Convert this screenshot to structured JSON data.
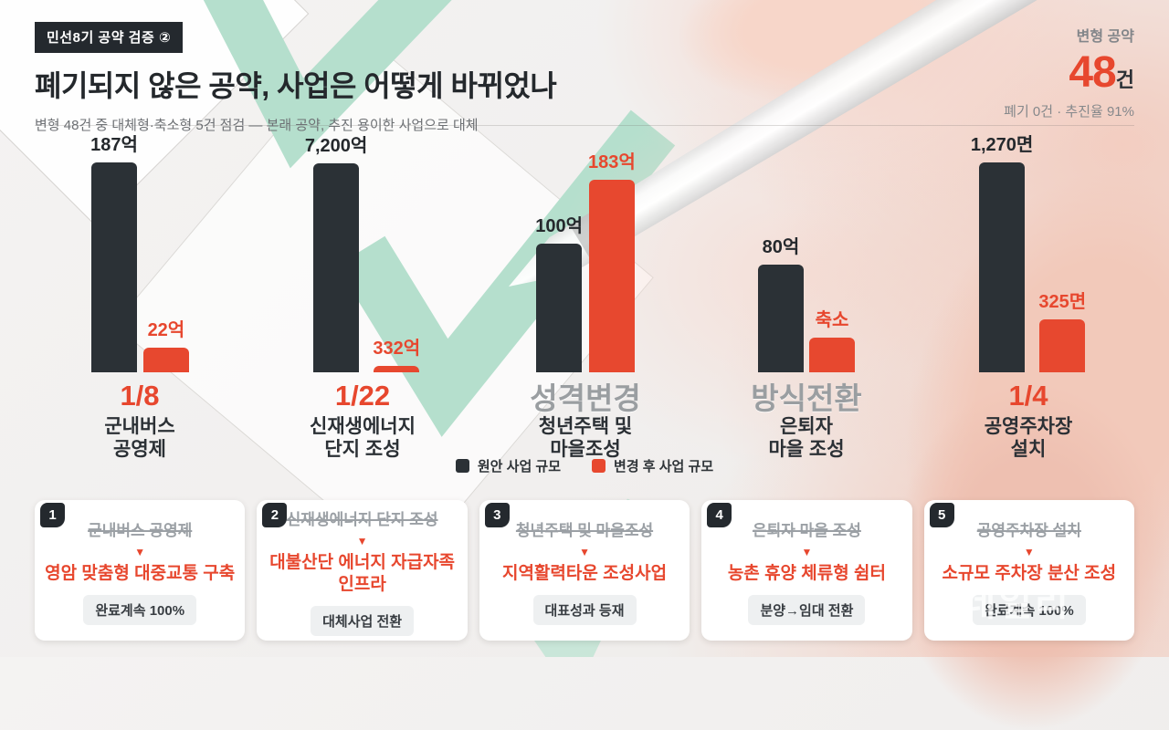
{
  "header": {
    "badge": "민선8기 공약 검증 ②",
    "title": "폐기되지 않은 공약, 사업은 어떻게 바뀌었나",
    "subtitle": "변형 48건 중 대체형·축소형 5건 점검 — 본래 공약, 추진 용이한 사업으로 대체"
  },
  "stat": {
    "label": "변형 공약",
    "value": "48",
    "unit": "건",
    "sub": "폐기 0건 · 추진율 91%"
  },
  "colors": {
    "dark": "#2b3136",
    "red": "#e7472e",
    "category_gray": "#9a9ea1",
    "mint": "#b5dfcd"
  },
  "chart_data": {
    "type": "bar",
    "categories": [
      "군내버스 공영제",
      "신재생에너지 단지 조성",
      "청년주택 및 마을조성",
      "은퇴자 마을 조성",
      "공영주차장 설치"
    ],
    "series": [
      {
        "name": "원안 사업 규모",
        "labels": [
          "187억",
          "7,200억",
          "100억",
          "80억",
          "1,270면"
        ],
        "values": [
          187,
          7200,
          100,
          80,
          1270
        ]
      },
      {
        "name": "변경 후 사업 규모",
        "labels": [
          "22억",
          "332억",
          "183억",
          "축소",
          "325면"
        ],
        "values": [
          22,
          332,
          183,
          null,
          325
        ]
      }
    ],
    "group_tags": [
      "1/8",
      "1/22",
      "성격변경",
      "방식전환",
      "1/4"
    ],
    "units": [
      "억",
      "억",
      "억",
      "억",
      "면"
    ],
    "legend_position": "bottom",
    "note": "bar heights are illustrative, not a shared linear scale"
  },
  "chart": {
    "groups": [
      {
        "orig_label": "187억",
        "orig_h": 230,
        "new_label": "22억",
        "new_h": 27,
        "tag": "1/8",
        "name1": "군내버스",
        "name2": "공영제"
      },
      {
        "orig_label": "7,200억",
        "orig_h": 229,
        "new_label": "332억",
        "new_h": 7,
        "tag": "1/22",
        "name1": "신재생에너지",
        "name2": "단지 조성"
      },
      {
        "orig_label": "100억",
        "orig_h": 141,
        "new_label": "183억",
        "new_h": 211,
        "tag": "성격변경",
        "name1": "청년주택 및",
        "name2": "마을조성"
      },
      {
        "orig_label": "80억",
        "orig_h": 118,
        "new_label": "축소",
        "new_h": 38,
        "tag": "방식전환",
        "name1": "은퇴자",
        "name2": "마을 조성"
      },
      {
        "orig_label": "1,270면",
        "orig_h": 230,
        "new_label": "325면",
        "new_h": 58,
        "tag": "1/4",
        "name1": "공영주차장",
        "name2": "설치"
      }
    ],
    "legend": [
      {
        "label": "원안 사업 규모"
      },
      {
        "label": "변경 후 사업 규모"
      }
    ]
  },
  "cards": [
    {
      "num": "1",
      "original": "군내버스 공영제",
      "arrow": "▼",
      "replacement": "영암 맞춤형 대중교통 구축",
      "status": "완료계속 100%"
    },
    {
      "num": "2",
      "original": "신재생에너지 단지 조성",
      "arrow": "▼",
      "replacement": "대불산단 에너지 자급자족 인프라",
      "status": "대체사업 전환"
    },
    {
      "num": "3",
      "original": "청년주택 및 마을조성",
      "arrow": "▼",
      "replacement": "지역활력타운 조성사업",
      "status": "대표성과 등재"
    },
    {
      "num": "4",
      "original": "은퇴자 마을 조성",
      "arrow": "▼",
      "replacement": "농촌 휴양 체류형 쉼터",
      "status": "분양→임대 전환"
    },
    {
      "num": "5",
      "original": "공영주차장 설치",
      "arrow": "▼",
      "replacement": "소규모 주차장 분산 조성",
      "status": "완료계속 100%",
      "watermark": "이데일리"
    }
  ]
}
